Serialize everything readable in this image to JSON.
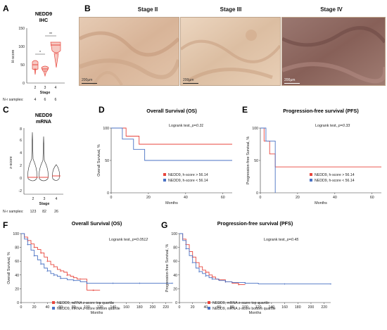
{
  "panels": {
    "A": {
      "letter": "A",
      "title_line1": "NEDD9",
      "title_line2": "IHC",
      "ylabel": "H-score",
      "xlabel": "Stage",
      "yticks": [
        "0",
        "50",
        "100",
        "150"
      ],
      "stages": [
        "2",
        "3",
        "4"
      ],
      "nr_label": "N-r samples:",
      "nr_values": [
        "4",
        "6",
        "6"
      ],
      "sig1": "*",
      "sig2": "**"
    },
    "B": {
      "letter": "B",
      "stages": [
        "Stage II",
        "Stage III",
        "Stage IV"
      ],
      "scale": "200µm"
    },
    "C": {
      "letter": "C",
      "title_line1": "NEDD9",
      "title_line2": "mRNA",
      "ylabel": "z-score",
      "xlabel": "Stage",
      "yticks": [
        "-2",
        "0",
        "2",
        "4",
        "6",
        "8"
      ],
      "stages": [
        "2",
        "3",
        "4"
      ],
      "nr_label": "N-r samples:",
      "nr_values": [
        "123",
        "82",
        "26"
      ]
    },
    "D": {
      "letter": "D",
      "title": "Overall Survival (OS)",
      "stat": "Logrank test, ",
      "p": "p=0.31",
      "ylabel": "Overall Survival, %",
      "xlabel": "Months",
      "legend": [
        "NEDD9, h-score > 56.14",
        "NEDD9, h-score < 56.14"
      ]
    },
    "E": {
      "letter": "E",
      "title": "Progression-free survival (PFS)",
      "stat": "Logrank test, ",
      "p": "p=0.33",
      "ylabel": "Progression-free Survival, %",
      "xlabel": "Months",
      "legend": [
        "NEDD9, h-score > 56.14",
        "NEDD9, h-score < 56.14"
      ]
    },
    "F": {
      "letter": "F",
      "title": "Overall Survival (OS)",
      "stat": "Logrank test, ",
      "p": "p=0.0512",
      "ylabel": "Overall Survival, %",
      "xlabel": "Months",
      "legend": [
        "NEDD9, mRNA z-score top quartile",
        "NEDD9, mRNA z-score bottom quartile"
      ]
    },
    "G": {
      "letter": "G",
      "title": "Progression-free survival (PFS)",
      "stat": "Logrank test, ",
      "p": "p=0.45",
      "ylabel": "Progression-free Survival, %",
      "xlabel": "Months",
      "legend": [
        "NEDD9, mRNA z-score top quartile",
        "NEDD9, mRNA z-score bottom quartile"
      ]
    }
  },
  "colors": {
    "high": "#e8453c",
    "low": "#4a72c4",
    "violin_red": "#e8453c",
    "ihc_II": "#d9b89c",
    "ihc_III": "#e3c7ac",
    "ihc_IV": "#8f6a62"
  },
  "chart_data": [
    {
      "id": "D",
      "type": "line",
      "x_ticks": [
        "0",
        "20",
        "40",
        "60"
      ],
      "y_ticks": [
        "0",
        "50",
        "100"
      ],
      "xlim": [
        0,
        65
      ],
      "ylim": [
        0,
        100
      ],
      "series": [
        {
          "name": "NEDD9, h-score > 56.14",
          "x": [
            0,
            8,
            8,
            15,
            15,
            65
          ],
          "y": [
            100,
            100,
            87.5,
            87.5,
            75,
            75
          ]
        },
        {
          "name": "NEDD9, h-score < 56.14",
          "x": [
            0,
            6,
            6,
            12,
            12,
            18,
            18,
            65
          ],
          "y": [
            100,
            100,
            83,
            83,
            67,
            67,
            50,
            50
          ]
        }
      ]
    },
    {
      "id": "E",
      "type": "line",
      "x_ticks": [
        "0",
        "20",
        "40",
        "60"
      ],
      "y_ticks": [
        "0",
        "50",
        "100"
      ],
      "xlim": [
        0,
        65
      ],
      "ylim": [
        0,
        100
      ],
      "series": [
        {
          "name": "NEDD9, h-score > 56.14",
          "x": [
            0,
            2,
            2,
            5,
            5,
            8,
            8,
            65
          ],
          "y": [
            100,
            100,
            80,
            80,
            60,
            60,
            40,
            40
          ]
        },
        {
          "name": "NEDD9, h-score < 56.14",
          "x": [
            0,
            3,
            3,
            8,
            8
          ],
          "y": [
            100,
            100,
            80,
            80,
            0
          ]
        }
      ]
    },
    {
      "id": "F",
      "type": "line",
      "x_ticks": [
        "0",
        "20",
        "40",
        "60",
        "80",
        "100",
        "120",
        "140",
        "160",
        "180",
        "200",
        "220"
      ],
      "y_ticks": [
        "0",
        "20",
        "40",
        "60",
        "80",
        "100"
      ],
      "xlim": [
        0,
        230
      ],
      "ylim": [
        0,
        100
      ],
      "series": [
        {
          "name": "NEDD9, mRNA z-score top quartile",
          "x": [
            0,
            5,
            10,
            15,
            20,
            25,
            30,
            35,
            40,
            45,
            50,
            55,
            60,
            65,
            70,
            75,
            80,
            85,
            90,
            100,
            110,
            120
          ],
          "y": [
            100,
            95,
            90,
            85,
            80,
            77,
            72,
            66,
            60,
            55,
            52,
            48,
            46,
            44,
            40,
            38,
            36,
            34,
            34,
            18,
            18,
            18
          ]
        },
        {
          "name": "NEDD9, mRNA z-score bottom quartile",
          "x": [
            0,
            5,
            10,
            15,
            20,
            25,
            30,
            35,
            40,
            45,
            50,
            55,
            60,
            70,
            80,
            90,
            100,
            120,
            140,
            160,
            180,
            200,
            230
          ],
          "y": [
            100,
            92,
            84,
            76,
            68,
            62,
            56,
            50,
            46,
            42,
            40,
            38,
            35,
            33,
            32,
            30,
            28,
            28,
            28,
            28,
            28,
            28,
            28
          ]
        }
      ]
    },
    {
      "id": "G",
      "type": "line",
      "x_ticks": [
        "0",
        "20",
        "40",
        "60",
        "80",
        "100",
        "120",
        "140",
        "160",
        "180",
        "200",
        "220"
      ],
      "y_ticks": [
        "0",
        "20",
        "40",
        "60",
        "80",
        "100"
      ],
      "xlim": [
        0,
        230
      ],
      "ylim": [
        0,
        100
      ],
      "series": [
        {
          "name": "NEDD9, mRNA z-score top quartile",
          "x": [
            0,
            5,
            10,
            15,
            20,
            25,
            30,
            35,
            40,
            45,
            50,
            55,
            60,
            65,
            70,
            80,
            90,
            100
          ],
          "y": [
            100,
            92,
            84,
            74,
            66,
            58,
            52,
            47,
            44,
            40,
            37,
            34,
            33,
            33,
            30,
            28,
            26,
            26
          ]
        },
        {
          "name": "NEDD9, mRNA z-score bottom quartile",
          "x": [
            0,
            5,
            10,
            15,
            20,
            25,
            30,
            35,
            40,
            45,
            50,
            60,
            70,
            80,
            100,
            120,
            160,
            200,
            230
          ],
          "y": [
            100,
            90,
            78,
            68,
            58,
            50,
            45,
            42,
            39,
            36,
            34,
            32,
            30,
            29,
            28,
            27,
            27,
            27,
            27
          ]
        }
      ]
    }
  ]
}
